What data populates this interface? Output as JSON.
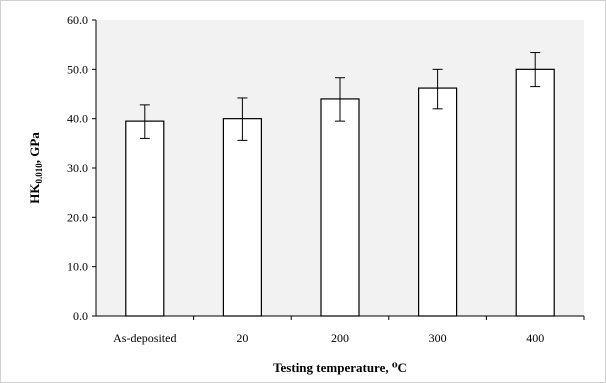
{
  "chart_data": {
    "type": "bar",
    "categories": [
      "As-deposited",
      "20",
      "200",
      "300",
      "400"
    ],
    "values": [
      39.5,
      40.0,
      44.0,
      46.2,
      50.0
    ],
    "error_low": [
      36.0,
      35.6,
      39.5,
      42.0,
      46.5
    ],
    "error_high": [
      42.8,
      44.2,
      48.3,
      50.0,
      53.4
    ],
    "xlabel": "Testing temperature, ⁰C",
    "ylabel": "HK",
    "ylabel_subscript": "0.010",
    "ylabel_suffix": ", GPa",
    "ylim": [
      0,
      60
    ],
    "ytick_step": 10,
    "ytick_labels": [
      "0.0",
      "10.0",
      "20.0",
      "30.0",
      "40.0",
      "50.0",
      "60.0"
    ],
    "grid": false,
    "legend": "none",
    "bar_fill": "#ffffff",
    "bar_stroke": "#000000",
    "plot_background": "#f2f2f2"
  }
}
